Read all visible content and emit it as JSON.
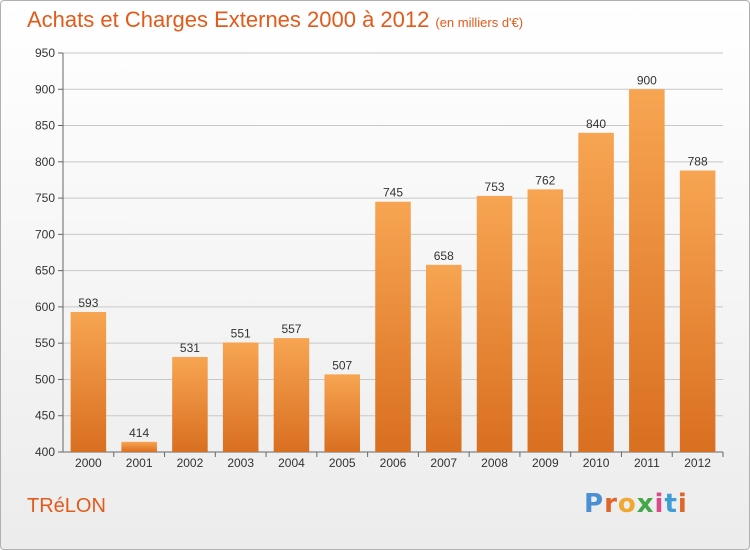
{
  "header": {
    "title": "Achats et Charges Externes 2000 à 2012",
    "unit": "(en milliers d'€)"
  },
  "footer": {
    "commune": "TRéLON",
    "brand_letters": [
      "P",
      "r",
      "o",
      "x",
      "i",
      "t",
      "i"
    ],
    "brand_colors": [
      "#4a8fd4",
      "#e0652a",
      "#f0a830",
      "#44a84a",
      "#d94c8c",
      "#3f9dd6",
      "#e0652a"
    ]
  },
  "colors": {
    "accent": "#e35a1a",
    "bar_top": "#f7a552",
    "bar_bottom": "#d96f20",
    "grid": "#c8c8c8"
  },
  "chart_data": {
    "type": "bar",
    "categories": [
      "2000",
      "2001",
      "2002",
      "2003",
      "2004",
      "2005",
      "2006",
      "2007",
      "2008",
      "2009",
      "2010",
      "2011",
      "2012"
    ],
    "values": [
      593,
      414,
      531,
      551,
      557,
      507,
      745,
      658,
      753,
      762,
      840,
      900,
      788
    ],
    "ylim": [
      400,
      950
    ],
    "yticks": [
      400,
      450,
      500,
      550,
      600,
      650,
      700,
      750,
      800,
      850,
      900,
      950
    ],
    "grid": true,
    "data_labels": true
  }
}
